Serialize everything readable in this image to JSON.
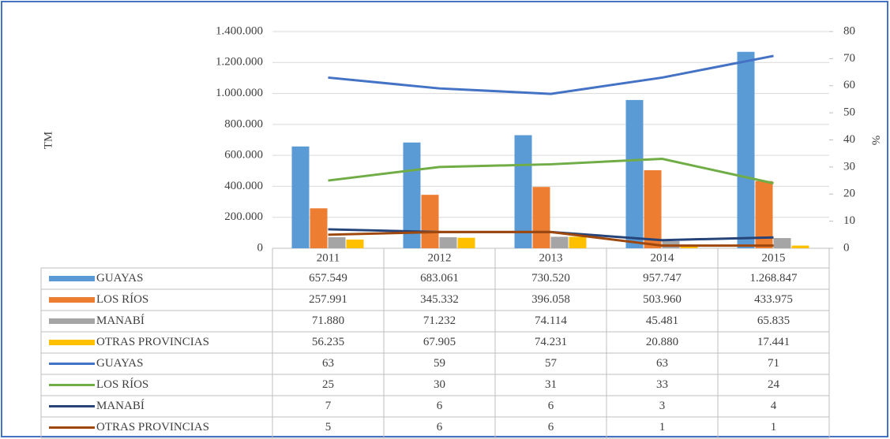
{
  "chart_data": {
    "type": "combo",
    "y_label": "TM",
    "y2_label": "%",
    "categories": [
      "2011",
      "2012",
      "2013",
      "2014",
      "2015"
    ],
    "ylim": [
      0,
      1400000
    ],
    "yticks": [
      0,
      {
        "value": 200000,
        "label": "200.000"
      },
      {
        "value": 400000,
        "label": "400.000"
      },
      {
        "value": 600000,
        "label": "600.000"
      },
      {
        "value": 800000,
        "label": "800.000"
      },
      {
        "value": 1000000,
        "label": "1.000.000"
      },
      {
        "value": 1200000,
        "label": "1.200.000"
      },
      {
        "value": 1400000,
        "label": "1.400.000"
      }
    ],
    "y2lim": [
      0,
      80
    ],
    "y2ticks": [
      0,
      10,
      20,
      30,
      40,
      50,
      60,
      70,
      80
    ],
    "grid": true,
    "series": [
      {
        "name": "GUAYAS",
        "type": "bar",
        "color": "#5b9bd5",
        "values": [
          657549,
          683061,
          730520,
          957747,
          1268847
        ],
        "value_labels": [
          "657.549",
          "683.061",
          "730.520",
          "957.747",
          "1.268.847"
        ]
      },
      {
        "name": "LOS RÍOS",
        "type": "bar",
        "color": "#ed7d31",
        "values": [
          257991,
          345332,
          396058,
          503960,
          433975
        ],
        "value_labels": [
          "257.991",
          "345.332",
          "396.058",
          "503.960",
          "433.975"
        ]
      },
      {
        "name": "MANABÍ",
        "type": "bar",
        "color": "#a5a5a5",
        "values": [
          71880,
          71232,
          74114,
          45481,
          65835
        ],
        "value_labels": [
          "71.880",
          "71.232",
          "74.114",
          "45.481",
          "65.835"
        ]
      },
      {
        "name": "OTRAS PROVINCIAS",
        "type": "bar",
        "color": "#ffc000",
        "values": [
          56235,
          67905,
          74231,
          20880,
          17441
        ],
        "value_labels": [
          "56.235",
          "67.905",
          "74.231",
          "20.880",
          "17.441"
        ]
      },
      {
        "name": "GUAYAS",
        "type": "line",
        "axis": "y2",
        "color": "#4472c4",
        "values": [
          63,
          59,
          57,
          63,
          71
        ]
      },
      {
        "name": "LOS RÍOS",
        "type": "line",
        "axis": "y2",
        "color": "#70ad47",
        "values": [
          25,
          30,
          31,
          33,
          24
        ]
      },
      {
        "name": "MANABÍ",
        "type": "line",
        "axis": "y2",
        "color": "#264478",
        "values": [
          7,
          6,
          6,
          3,
          4
        ]
      },
      {
        "name": "OTRAS PROVINCIAS",
        "type": "line",
        "axis": "y2",
        "color": "#9e480e",
        "values": [
          5,
          6,
          6,
          1,
          1
        ]
      }
    ]
  }
}
